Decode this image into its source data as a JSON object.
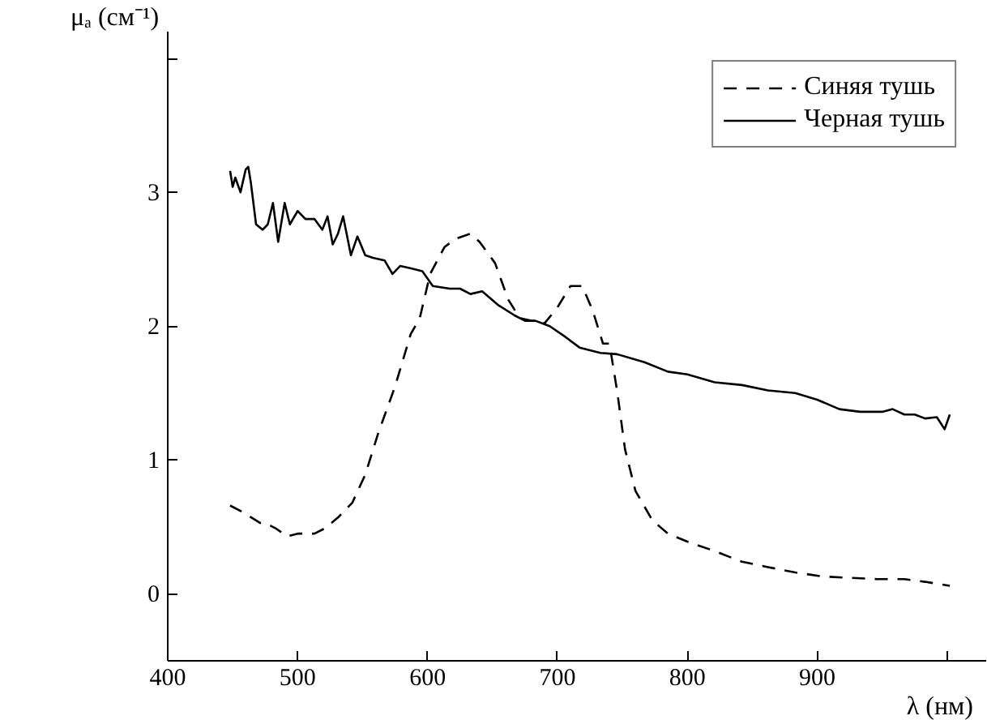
{
  "chart_data": {
    "type": "line",
    "xlabel": "λ (нм)",
    "ylabel": "μₐ (см⁻¹)",
    "xlim": [
      400,
      1030
    ],
    "ylim": [
      -0.5,
      4.2
    ],
    "xticks": [
      400,
      500,
      600,
      700,
      800,
      900,
      {
        "value": 1000,
        "label": null
      }
    ],
    "yticks": [
      0,
      1,
      2,
      3,
      {
        "value": 4,
        "label": null
      }
    ],
    "grid": false,
    "legend": "top right",
    "marker": "none",
    "series": [
      {
        "name": "Синяя тушь",
        "color": "#000000",
        "line_style": "dashed",
        "x": [
          448,
          458,
          471,
          475,
          483,
          492,
          500,
          513,
          521,
          531,
          542,
          552,
          562,
          575,
          587,
          594,
          602,
          613,
          621,
          633,
          640,
          652,
          662,
          671,
          690,
          700,
          710,
          719,
          727,
          735,
          740,
          746,
          752,
          760,
          773,
          785,
          800,
          821,
          842,
          862,
          883,
          904,
          925,
          946,
          967,
          983,
          1002
        ],
        "values": [
          0.66,
          0.61,
          0.53,
          0.53,
          0.49,
          0.43,
          0.45,
          0.45,
          0.49,
          0.57,
          0.68,
          0.89,
          1.2,
          1.55,
          1.94,
          2.06,
          2.39,
          2.59,
          2.65,
          2.69,
          2.63,
          2.47,
          2.2,
          2.06,
          2.02,
          2.14,
          2.3,
          2.3,
          2.12,
          1.87,
          1.87,
          1.51,
          1.08,
          0.77,
          0.55,
          0.45,
          0.39,
          0.32,
          0.24,
          0.2,
          0.16,
          0.13,
          0.12,
          0.11,
          0.11,
          0.09,
          0.06
        ]
      },
      {
        "name": "Черная тушь",
        "color": "#000000",
        "line_style": "solid",
        "x": [
          448,
          450,
          452,
          456,
          460,
          462,
          464,
          468,
          473,
          477,
          481,
          485,
          490,
          494,
          500,
          506,
          513,
          519,
          523,
          527,
          531,
          535,
          541,
          546,
          552,
          558,
          567,
          573,
          579,
          588,
          596,
          604,
          617,
          625,
          633,
          642,
          654,
          667,
          675,
          683,
          694,
          706,
          717,
          733,
          746,
          767,
          785,
          800,
          821,
          842,
          862,
          883,
          900,
          917,
          933,
          950,
          958,
          967,
          975,
          983,
          992,
          998,
          1002
        ],
        "values": [
          3.16,
          3.04,
          3.11,
          3.0,
          3.17,
          3.19,
          3.07,
          2.76,
          2.72,
          2.76,
          2.92,
          2.63,
          2.92,
          2.76,
          2.86,
          2.8,
          2.8,
          2.72,
          2.82,
          2.61,
          2.69,
          2.82,
          2.53,
          2.67,
          2.53,
          2.51,
          2.49,
          2.39,
          2.45,
          2.43,
          2.41,
          2.3,
          2.28,
          2.28,
          2.24,
          2.26,
          2.16,
          2.08,
          2.04,
          2.04,
          2.0,
          1.92,
          1.84,
          1.8,
          1.79,
          1.73,
          1.66,
          1.64,
          1.58,
          1.56,
          1.52,
          1.5,
          1.45,
          1.38,
          1.36,
          1.36,
          1.38,
          1.34,
          1.34,
          1.31,
          1.32,
          1.23,
          1.34
        ]
      }
    ]
  }
}
